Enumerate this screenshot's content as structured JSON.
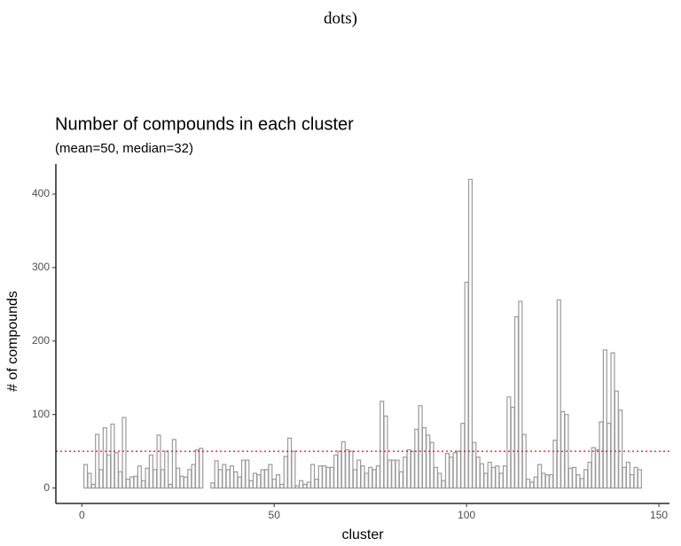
{
  "caption": "dots)",
  "chart_data": {
    "type": "bar",
    "title": "Number of compounds in each cluster",
    "subtitle": "(mean=50, median=32)",
    "x_label": "cluster",
    "y_label": "# of compounds",
    "x": [
      1,
      2,
      3,
      4,
      5,
      6,
      7,
      8,
      9,
      10,
      11,
      12,
      13,
      14,
      15,
      16,
      17,
      18,
      19,
      20,
      21,
      22,
      23,
      24,
      25,
      26,
      27,
      28,
      29,
      30,
      31,
      32,
      33,
      34,
      35,
      36,
      37,
      38,
      39,
      40,
      41,
      42,
      43,
      44,
      45,
      46,
      47,
      48,
      49,
      50,
      51,
      52,
      53,
      54,
      55,
      56,
      57,
      58,
      59,
      60,
      61,
      62,
      63,
      64,
      65,
      66,
      67,
      68,
      69,
      70,
      71,
      72,
      73,
      74,
      75,
      76,
      77,
      78,
      79,
      80,
      81,
      82,
      83,
      84,
      85,
      86,
      87,
      88,
      89,
      90,
      91,
      92,
      93,
      94,
      95,
      96,
      97,
      98,
      99,
      100,
      101,
      102,
      103,
      104,
      105,
      106,
      107,
      108,
      109,
      110,
      111,
      112,
      113,
      114,
      115,
      116,
      117,
      118,
      119,
      120,
      121,
      122,
      123,
      124,
      125,
      126,
      127,
      128,
      129,
      130,
      131,
      132,
      133,
      134,
      135,
      136,
      137,
      138,
      139,
      140,
      141,
      142,
      143,
      144,
      145
    ],
    "values": [
      32,
      20,
      5,
      73,
      25,
      82,
      45,
      87,
      48,
      22,
      96,
      12,
      15,
      16,
      30,
      10,
      27,
      45,
      25,
      72,
      25,
      50,
      5,
      66,
      27,
      16,
      15,
      25,
      32,
      52,
      54,
      0,
      0,
      7,
      37,
      25,
      32,
      25,
      30,
      22,
      15,
      38,
      38,
      10,
      20,
      18,
      25,
      25,
      32,
      12,
      18,
      5,
      43,
      68,
      50,
      3,
      10,
      5,
      8,
      32,
      12,
      30,
      30,
      28,
      28,
      45,
      50,
      63,
      52,
      50,
      25,
      38,
      30,
      20,
      28,
      25,
      30,
      118,
      98,
      38,
      38,
      38,
      22,
      42,
      52,
      50,
      80,
      112,
      82,
      72,
      62,
      28,
      20,
      10,
      47,
      42,
      48,
      50,
      88,
      280,
      420,
      62,
      42,
      33,
      20,
      35,
      28,
      30,
      20,
      30,
      124,
      110,
      233,
      254,
      73,
      12,
      8,
      15,
      32,
      20,
      18,
      18,
      65,
      256,
      104,
      100,
      27,
      28,
      18,
      13,
      25,
      35,
      55,
      52,
      90,
      188,
      88,
      184,
      132,
      106,
      28,
      35,
      18,
      28,
      25
    ],
    "fill": "#ffffff",
    "color": "#9a9a9a",
    "hline": 50,
    "hline_color": "#ff0000",
    "xlim": [
      -6.75,
      152.75
    ],
    "xticks": [
      0,
      50,
      100,
      150
    ],
    "ylim": [
      -21,
      441
    ],
    "yticks": [
      0,
      100,
      200,
      300,
      400
    ],
    "grid": false
  }
}
